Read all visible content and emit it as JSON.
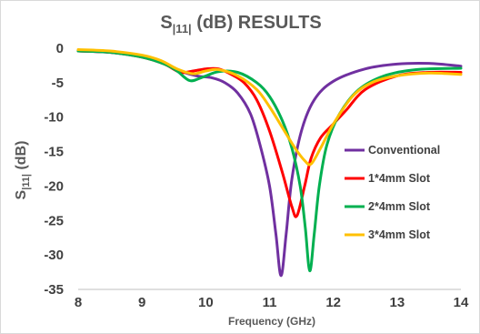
{
  "chart_data": {
    "type": "line",
    "title": {
      "main": "S",
      "sub": "|11|",
      "rest": " (dB) RESULTS"
    },
    "xlabel": "Frequency (GHz)",
    "ylabel": {
      "main": "S",
      "sub": "|11|",
      "rest": " (dB)"
    },
    "xlim": [
      8,
      14
    ],
    "ylim": [
      -35,
      0
    ],
    "x_ticks": [
      8,
      9,
      10,
      11,
      12,
      13,
      14
    ],
    "y_ticks": [
      0,
      -5,
      -10,
      -15,
      -20,
      -25,
      -30,
      -35
    ],
    "grid": false,
    "legend_position": "right",
    "series": [
      {
        "name": "Conventional",
        "color": "#7030a0",
        "points": [
          [
            8.0,
            -0.4
          ],
          [
            8.5,
            -0.6
          ],
          [
            9.0,
            -1.2
          ],
          [
            9.3,
            -2.0
          ],
          [
            9.6,
            -3.3
          ],
          [
            9.85,
            -4.0
          ],
          [
            10.1,
            -4.3
          ],
          [
            10.3,
            -5.0
          ],
          [
            10.5,
            -6.5
          ],
          [
            10.7,
            -9.5
          ],
          [
            10.85,
            -14
          ],
          [
            11.0,
            -20
          ],
          [
            11.1,
            -27
          ],
          [
            11.18,
            -33
          ],
          [
            11.26,
            -27
          ],
          [
            11.35,
            -19
          ],
          [
            11.5,
            -12
          ],
          [
            11.7,
            -7.5
          ],
          [
            12.0,
            -4.8
          ],
          [
            12.5,
            -3.0
          ],
          [
            13.0,
            -2.3
          ],
          [
            13.5,
            -2.2
          ],
          [
            14.0,
            -2.6
          ]
        ]
      },
      {
        "name": "1*4mm Slot",
        "color": "#ff0000",
        "points": [
          [
            8.0,
            -0.4
          ],
          [
            8.5,
            -0.6
          ],
          [
            9.0,
            -1.3
          ],
          [
            9.35,
            -2.3
          ],
          [
            9.6,
            -3.5
          ],
          [
            9.8,
            -3.3
          ],
          [
            10.0,
            -3.0
          ],
          [
            10.2,
            -3.0
          ],
          [
            10.4,
            -3.8
          ],
          [
            10.6,
            -5.0
          ],
          [
            10.8,
            -7.5
          ],
          [
            11.0,
            -12
          ],
          [
            11.2,
            -18
          ],
          [
            11.35,
            -23
          ],
          [
            11.43,
            -24.3
          ],
          [
            11.55,
            -20
          ],
          [
            11.65,
            -16
          ],
          [
            11.8,
            -13
          ],
          [
            12.0,
            -11
          ],
          [
            12.2,
            -9.0
          ],
          [
            12.5,
            -6.0
          ],
          [
            13.0,
            -4.0
          ],
          [
            13.5,
            -3.5
          ],
          [
            14.0,
            -3.5
          ]
        ]
      },
      {
        "name": "2*4mm Slot",
        "color": "#00b050",
        "points": [
          [
            8.0,
            -0.4
          ],
          [
            8.5,
            -0.6
          ],
          [
            9.0,
            -1.3
          ],
          [
            9.35,
            -2.3
          ],
          [
            9.55,
            -3.3
          ],
          [
            9.75,
            -4.7
          ],
          [
            9.95,
            -4.2
          ],
          [
            10.2,
            -3.4
          ],
          [
            10.5,
            -3.5
          ],
          [
            10.8,
            -5.0
          ],
          [
            11.0,
            -7.0
          ],
          [
            11.2,
            -10.5
          ],
          [
            11.35,
            -14.5
          ],
          [
            11.48,
            -20
          ],
          [
            11.56,
            -26
          ],
          [
            11.63,
            -32.3
          ],
          [
            11.7,
            -27
          ],
          [
            11.78,
            -20
          ],
          [
            11.9,
            -14
          ],
          [
            12.1,
            -9.5
          ],
          [
            12.4,
            -6.0
          ],
          [
            12.8,
            -4.0
          ],
          [
            13.3,
            -3.1
          ],
          [
            14.0,
            -2.9
          ]
        ]
      },
      {
        "name": "3*4mm Slot",
        "color": "#ffc000",
        "points": [
          [
            8.0,
            -0.2
          ],
          [
            8.5,
            -0.4
          ],
          [
            9.0,
            -1.0
          ],
          [
            9.3,
            -1.8
          ],
          [
            9.55,
            -3.0
          ],
          [
            9.8,
            -3.7
          ],
          [
            10.0,
            -3.3
          ],
          [
            10.2,
            -3.1
          ],
          [
            10.5,
            -4.0
          ],
          [
            10.8,
            -6.0
          ],
          [
            11.0,
            -8.5
          ],
          [
            11.2,
            -11.5
          ],
          [
            11.4,
            -14.5
          ],
          [
            11.55,
            -16.3
          ],
          [
            11.65,
            -16.8
          ],
          [
            11.8,
            -14.5
          ],
          [
            12.0,
            -11
          ],
          [
            12.3,
            -7.0
          ],
          [
            12.6,
            -5.0
          ],
          [
            13.0,
            -4.0
          ],
          [
            13.5,
            -3.6
          ],
          [
            14.0,
            -3.8
          ]
        ]
      }
    ]
  }
}
